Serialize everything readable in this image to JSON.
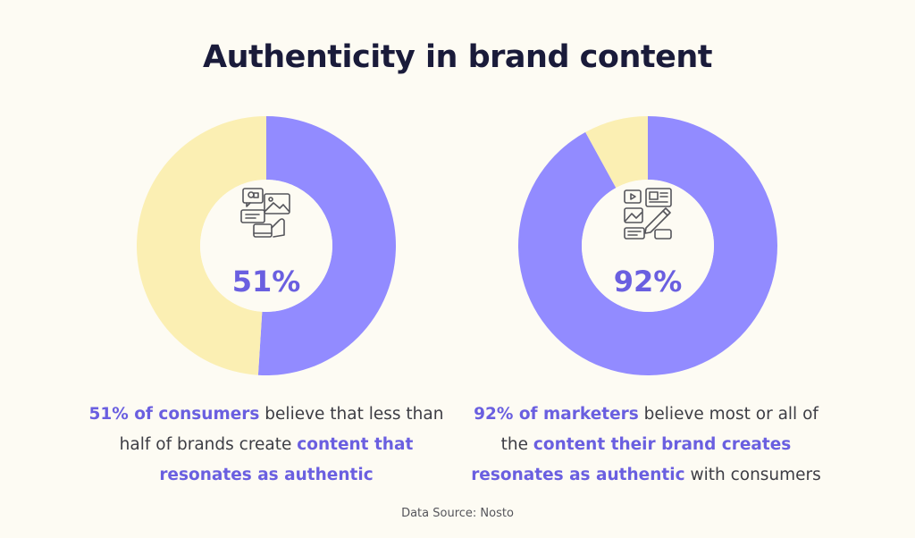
{
  "title": "Authenticity in brand content",
  "colors": {
    "accent": "#928BFF",
    "remainder": "#FBEFB3",
    "highlight_text": "#6A5FE0",
    "background": "#FDFBF3"
  },
  "chart_data": [
    {
      "type": "pie",
      "variant": "donut",
      "center_label": "51%",
      "center_icon": "social-media-chat-icon",
      "slices": [
        {
          "value": 51,
          "color": "#928BFF"
        },
        {
          "value": 49,
          "color": "#FBEFB3"
        }
      ],
      "caption": {
        "p1": "51% of consumers",
        "p2": " believe that less than half of brands create ",
        "p3": "content that resonates as authentic",
        "p4": ""
      }
    },
    {
      "type": "pie",
      "variant": "donut",
      "center_label": "92%",
      "center_icon": "content-creation-icon",
      "slices": [
        {
          "value": 92,
          "color": "#928BFF"
        },
        {
          "value": 8,
          "color": "#FBEFB3"
        }
      ],
      "caption": {
        "p1": "92% of marketers",
        "p2": " believe most or all of the ",
        "p3": "content their brand creates resonates as authentic",
        "p4": " with consumers"
      }
    }
  ],
  "source": "Data Source: Nosto"
}
